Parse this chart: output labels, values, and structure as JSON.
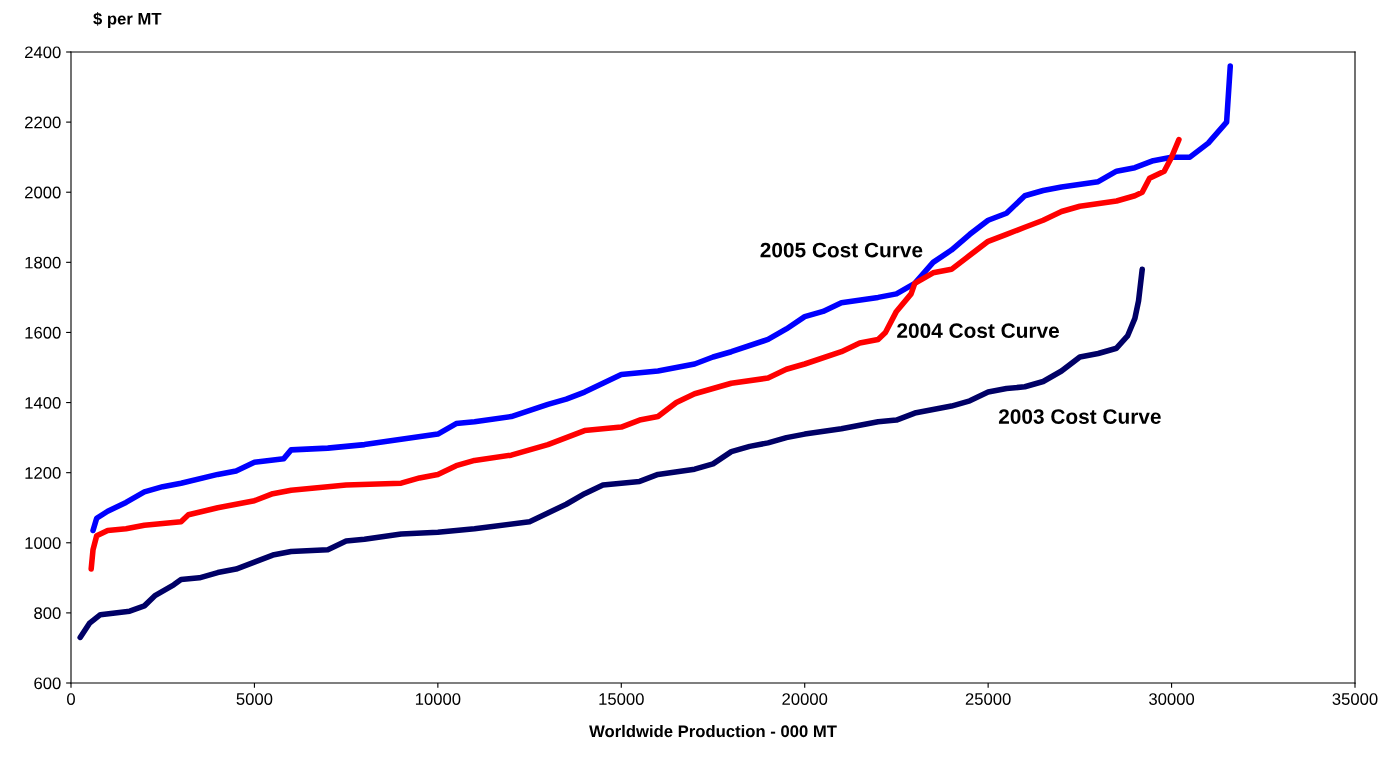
{
  "chart_data": {
    "type": "line",
    "xlabel": "Worldwide Production - 000 MT",
    "ylabel": "$ per MT",
    "xlim": [
      0,
      35000
    ],
    "xticks": [
      0,
      5000,
      10000,
      15000,
      20000,
      25000,
      30000,
      35000
    ],
    "ylim": [
      600,
      2400
    ],
    "yticks": [
      600,
      800,
      1000,
      1200,
      1400,
      1600,
      1800,
      2000,
      2200,
      2400
    ],
    "grid": false,
    "legend": false,
    "marker": "none",
    "line_style": "solid",
    "series": [
      {
        "name": "2005 Cost Curve",
        "color": "#0000ff",
        "x": [
          600,
          700,
          1000,
          1500,
          2000,
          2500,
          3000,
          4000,
          4500,
          5000,
          5800,
          6000,
          7000,
          8000,
          9000,
          10000,
          10500,
          11000,
          12000,
          13000,
          13500,
          14000,
          14500,
          15000,
          16000,
          17000,
          17500,
          18000,
          19000,
          19500,
          20000,
          20500,
          21000,
          22000,
          22500,
          23000,
          23500,
          24000,
          24500,
          25000,
          25500,
          26000,
          26500,
          27000,
          28000,
          28500,
          29000,
          29500,
          30000,
          30500,
          31000,
          31500,
          31600
        ],
        "values": [
          1035,
          1070,
          1090,
          1115,
          1145,
          1160,
          1170,
          1195,
          1205,
          1230,
          1240,
          1265,
          1270,
          1280,
          1295,
          1310,
          1340,
          1345,
          1360,
          1395,
          1410,
          1430,
          1455,
          1480,
          1490,
          1510,
          1530,
          1545,
          1580,
          1610,
          1645,
          1660,
          1685,
          1700,
          1710,
          1740,
          1800,
          1835,
          1880,
          1920,
          1940,
          1990,
          2005,
          2015,
          2030,
          2060,
          2070,
          2090,
          2100,
          2100,
          2140,
          2200,
          2360
        ]
      },
      {
        "name": "2004 Cost Curve",
        "color": "#ff0000",
        "x": [
          550,
          600,
          700,
          1000,
          1500,
          2000,
          2500,
          3000,
          3200,
          4000,
          4500,
          5000,
          5500,
          6000,
          7000,
          7500,
          9000,
          9500,
          10000,
          10500,
          11000,
          12000,
          12500,
          13000,
          13500,
          14000,
          14500,
          15000,
          15500,
          16000,
          16500,
          17000,
          17500,
          18000,
          19000,
          19500,
          20000,
          21000,
          21500,
          22000,
          22200,
          22500,
          22900,
          23000,
          23500,
          24000,
          24500,
          25000,
          25500,
          26000,
          26500,
          27000,
          27500,
          28500,
          29000,
          29200,
          29400,
          29800,
          30000,
          30200
        ],
        "values": [
          925,
          980,
          1020,
          1035,
          1040,
          1050,
          1055,
          1060,
          1080,
          1100,
          1110,
          1120,
          1140,
          1150,
          1160,
          1165,
          1170,
          1185,
          1195,
          1220,
          1235,
          1250,
          1265,
          1280,
          1300,
          1320,
          1325,
          1330,
          1350,
          1360,
          1400,
          1425,
          1440,
          1455,
          1470,
          1495,
          1510,
          1545,
          1570,
          1580,
          1600,
          1660,
          1710,
          1740,
          1770,
          1780,
          1820,
          1860,
          1880,
          1900,
          1920,
          1945,
          1960,
          1975,
          1990,
          2000,
          2040,
          2060,
          2100,
          2150
        ]
      },
      {
        "name": "2003 Cost Curve",
        "color": "#000066",
        "x": [
          250,
          500,
          800,
          1200,
          1600,
          2000,
          2300,
          2800,
          3000,
          3500,
          4000,
          4500,
          5000,
          5500,
          6000,
          7000,
          7500,
          8000,
          9000,
          10000,
          11000,
          12500,
          13000,
          13500,
          14000,
          14500,
          15500,
          16000,
          17000,
          17500,
          18000,
          18500,
          19000,
          19500,
          20000,
          21000,
          22000,
          22500,
          23000,
          24000,
          24500,
          25000,
          25500,
          26000,
          26500,
          27000,
          27500,
          28000,
          28500,
          28800,
          29000,
          29100,
          29200
        ],
        "values": [
          730,
          770,
          795,
          800,
          805,
          820,
          850,
          880,
          895,
          900,
          915,
          925,
          945,
          965,
          975,
          980,
          1005,
          1010,
          1025,
          1030,
          1040,
          1060,
          1085,
          1110,
          1140,
          1165,
          1175,
          1195,
          1210,
          1225,
          1260,
          1275,
          1285,
          1300,
          1310,
          1325,
          1345,
          1350,
          1370,
          1390,
          1405,
          1430,
          1440,
          1445,
          1460,
          1490,
          1530,
          1540,
          1555,
          1590,
          1640,
          1690,
          1780
        ]
      }
    ]
  }
}
